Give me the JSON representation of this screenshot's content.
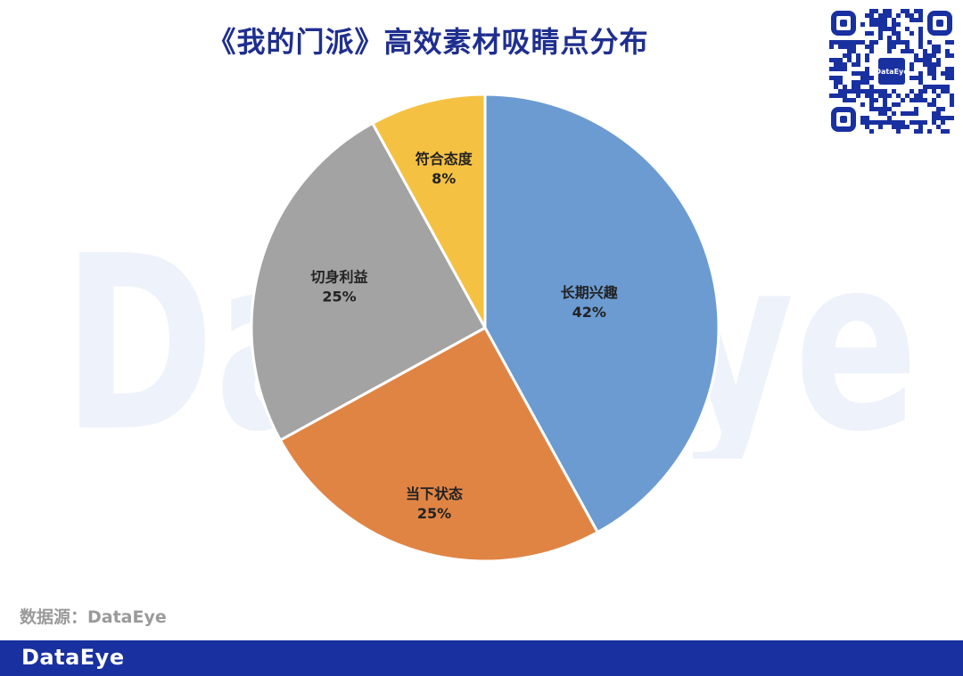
{
  "title": "《我的门派》高效素材吸睛点分布",
  "source": "数据源：DataEye",
  "footer_logo": "DataEye",
  "qr_logo": "DataEye",
  "chart_data": {
    "type": "pie",
    "title": "《我的门派》高效素材吸睛点分布",
    "slices": [
      {
        "label": "长期兴趣",
        "value": 42,
        "display": "42%",
        "color": "#6b9bd1"
      },
      {
        "label": "当下状态",
        "value": 25,
        "display": "25%",
        "color": "#e08444"
      },
      {
        "label": "切身利益",
        "value": 25,
        "display": "25%",
        "color": "#a3a3a3"
      },
      {
        "label": "符合态度",
        "value": 8,
        "display": "8%",
        "color": "#f5c142"
      }
    ],
    "start": "12 o'clock",
    "direction": "clockwise"
  }
}
